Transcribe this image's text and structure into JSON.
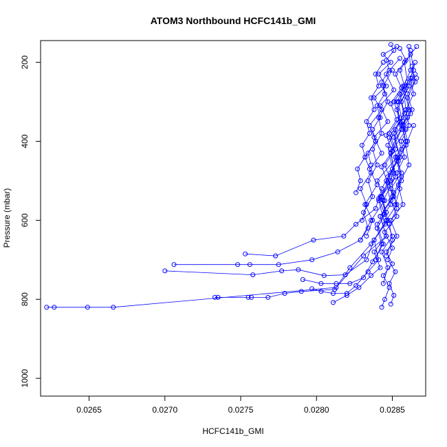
{
  "chart_data": {
    "type": "line",
    "title": "ATOM3 Northbound HCFC141b_GMI",
    "xlabel": "HCFC141b_GMI",
    "ylabel": "Pressure (mbar)",
    "xlim": [
      0.02618,
      0.02872
    ],
    "ylim": [
      1045,
      145
    ],
    "y_reversed": true,
    "x_ticks": [
      0.0265,
      0.027,
      0.0275,
      0.028,
      0.0285
    ],
    "x_tick_labels": [
      "0.0265",
      "0.0270",
      "0.0275",
      "0.0280",
      "0.0285"
    ],
    "y_ticks": [
      200,
      400,
      600,
      800,
      1000
    ],
    "y_tick_labels": [
      "200",
      "400",
      "600",
      "800",
      "1000"
    ],
    "series_color": "#0000ff",
    "marker": "open-circle",
    "grid": false,
    "legend": "none",
    "series": [
      {
        "x": [
          0.02622,
          0.02627,
          0.02649,
          0.02666,
          0.02813,
          0.02831,
          0.02846,
          0.02842,
          0.02851,
          0.02849,
          0.02856,
          0.02852,
          0.02861,
          0.02858,
          0.02864,
          0.02862
        ],
        "y": [
          820,
          820,
          820,
          820,
          770,
          690,
          640,
          590,
          540,
          480,
          420,
          370,
          320,
          270,
          220,
          170
        ]
      },
      {
        "x": [
          0.02733,
          0.02735,
          0.02755,
          0.02757,
          0.02768,
          0.02779,
          0.0279,
          0.02812,
          0.02822,
          0.02836,
          0.02845,
          0.02841,
          0.02852,
          0.02849,
          0.02859,
          0.02856,
          0.02865
        ],
        "y": [
          795,
          795,
          795,
          795,
          795,
          785,
          780,
          775,
          720,
          660,
          610,
          550,
          490,
          430,
          370,
          300,
          230
        ]
      },
      {
        "x": [
          0.027,
          0.02758,
          0.02777,
          0.02788,
          0.02805,
          0.02819,
          0.02833,
          0.02838,
          0.02846,
          0.02843,
          0.02851,
          0.02849,
          0.02857,
          0.02854,
          0.02863
        ],
        "y": [
          728,
          738,
          728,
          725,
          740,
          738,
          700,
          650,
          600,
          540,
          480,
          420,
          360,
          300,
          240
        ]
      },
      {
        "x": [
          0.02706,
          0.02748,
          0.02756,
          0.02775,
          0.02797,
          0.02814,
          0.02829,
          0.02836,
          0.02845,
          0.0284,
          0.02853,
          0.02848,
          0.02858,
          0.02855,
          0.02862,
          0.02861
        ],
        "y": [
          712,
          712,
          712,
          712,
          700,
          680,
          650,
          600,
          550,
          500,
          440,
          390,
          330,
          280,
          220,
          160
        ]
      },
      {
        "x": [
          0.02753,
          0.02773,
          0.02798,
          0.02818,
          0.02826,
          0.02839,
          0.02843,
          0.0285,
          0.02847,
          0.02855,
          0.02853,
          0.0286,
          0.02858,
          0.02866
        ],
        "y": [
          685,
          690,
          650,
          640,
          610,
          570,
          520,
          470,
          410,
          350,
          300,
          250,
          200,
          160
        ]
      },
      {
        "x": [
          0.02791,
          0.02803,
          0.02813,
          0.02822,
          0.02831,
          0.02837,
          0.02844,
          0.0284,
          0.02849,
          0.02846,
          0.02855,
          0.02851,
          0.02859,
          0.02857
        ],
        "y": [
          750,
          760,
          760,
          760,
          745,
          705,
          660,
          610,
          560,
          500,
          440,
          380,
          320,
          260
        ]
      },
      {
        "x": [
          0.02797,
          0.02803,
          0.02811,
          0.0282,
          0.02826,
          0.02834,
          0.02841,
          0.02838,
          0.02847,
          0.02844,
          0.02852,
          0.02849,
          0.02856,
          0.02853,
          0.02861
        ],
        "y": [
          773,
          780,
          785,
          785,
          765,
          730,
          700,
          650,
          600,
          550,
          490,
          430,
          370,
          320,
          260
        ]
      },
      {
        "x": [
          0.02811,
          0.0282,
          0.02828,
          0.02836,
          0.02842,
          0.02838,
          0.02846,
          0.02842,
          0.0285,
          0.02847,
          0.02855,
          0.02851,
          0.0286
        ],
        "y": [
          808,
          790,
          770,
          740,
          720,
          680,
          640,
          590,
          540,
          490,
          440,
          390,
          340
        ]
      },
      {
        "x": [
          0.02843,
          0.02845,
          0.02848,
          0.02844,
          0.0285,
          0.02846,
          0.02853,
          0.02849,
          0.02857,
          0.02854,
          0.02861,
          0.02859,
          0.02864
        ],
        "y": [
          820,
          800,
          770,
          740,
          710,
          680,
          640,
          600,
          560,
          510,
          460,
          410,
          360
        ]
      },
      {
        "x": [
          0.02849,
          0.02851,
          0.02848,
          0.02852,
          0.02847,
          0.0285,
          0.02845,
          0.02853,
          0.02849,
          0.02856,
          0.02853,
          0.0286,
          0.02857
        ],
        "y": [
          812,
          790,
          760,
          730,
          700,
          670,
          630,
          590,
          550,
          500,
          450,
          400,
          350
        ]
      },
      {
        "x": [
          0.0283,
          0.02833,
          0.02829,
          0.02836,
          0.02832,
          0.02839,
          0.02835,
          0.02843,
          0.02838,
          0.02846,
          0.02841,
          0.02849,
          0.02844,
          0.02853
        ],
        "y": [
          600,
          560,
          520,
          480,
          440,
          400,
          360,
          320,
          290,
          260,
          230,
          200,
          180,
          160
        ]
      },
      {
        "x": [
          0.02833,
          0.02837,
          0.02832,
          0.0284,
          0.02835,
          0.02843,
          0.02838,
          0.02847,
          0.02842,
          0.02851,
          0.02846,
          0.02855
        ],
        "y": [
          640,
          600,
          560,
          510,
          470,
          430,
          390,
          350,
          310,
          270,
          230,
          190
        ]
      },
      {
        "x": [
          0.02826,
          0.02829,
          0.02827,
          0.02832,
          0.0283,
          0.02835,
          0.02833,
          0.02838,
          0.02836,
          0.02841,
          0.02839,
          0.02844
        ],
        "y": [
          530,
          500,
          470,
          440,
          410,
          380,
          350,
          320,
          290,
          260,
          230,
          200
        ]
      },
      {
        "x": [
          0.02829,
          0.02834,
          0.02831,
          0.02837,
          0.02834,
          0.0284,
          0.02837,
          0.02843,
          0.02841,
          0.02847,
          0.02844,
          0.0285
        ],
        "y": [
          650,
          620,
          580,
          540,
          500,
          460,
          420,
          380,
          340,
          300,
          260,
          220
        ]
      },
      {
        "x": [
          0.02839,
          0.02843,
          0.0284,
          0.02846,
          0.02842,
          0.02849,
          0.02845,
          0.02852,
          0.02848,
          0.02855,
          0.02851,
          0.02858,
          0.02855,
          0.02862
        ],
        "y": [
          700,
          660,
          620,
          580,
          540,
          500,
          460,
          420,
          380,
          340,
          300,
          260,
          220,
          180
        ]
      },
      {
        "x": [
          0.02844,
          0.02847,
          0.02843,
          0.0285,
          0.02846,
          0.02853,
          0.02849,
          0.02856,
          0.02852,
          0.02859,
          0.02856,
          0.02863,
          0.0286,
          0.02866
        ],
        "y": [
          760,
          720,
          680,
          640,
          600,
          560,
          520,
          480,
          440,
          400,
          360,
          320,
          280,
          240
        ]
      },
      {
        "x": [
          0.02846,
          0.0285,
          0.02848,
          0.02853,
          0.02851,
          0.02856,
          0.02854,
          0.02859,
          0.02857,
          0.02862,
          0.0286,
          0.02865,
          0.02863
        ],
        "y": [
          690,
          650,
          610,
          570,
          530,
          490,
          450,
          410,
          370,
          330,
          290,
          250,
          210
        ]
      },
      {
        "x": [
          0.0284,
          0.02845,
          0.02841,
          0.02847,
          0.02843,
          0.0285,
          0.02846,
          0.02853,
          0.02849,
          0.02856,
          0.02852,
          0.02859,
          0.02855
        ],
        "y": [
          620,
          585,
          545,
          505,
          465,
          425,
          385,
          345,
          305,
          265,
          230,
          195,
          165
        ]
      },
      {
        "x": [
          0.02836,
          0.02834,
          0.02839,
          0.02837,
          0.02842,
          0.0284,
          0.02845,
          0.02843,
          0.02848,
          0.02846,
          0.02851,
          0.02849
        ],
        "y": [
          460,
          430,
          400,
          370,
          340,
          310,
          280,
          250,
          220,
          195,
          170,
          155
        ]
      },
      {
        "x": [
          0.02852,
          0.02855,
          0.02853,
          0.02858,
          0.02856,
          0.02861,
          0.02859,
          0.02864,
          0.02862,
          0.02865
        ],
        "y": [
          560,
          520,
          480,
          440,
          400,
          360,
          320,
          280,
          240,
          200
        ]
      }
    ]
  }
}
